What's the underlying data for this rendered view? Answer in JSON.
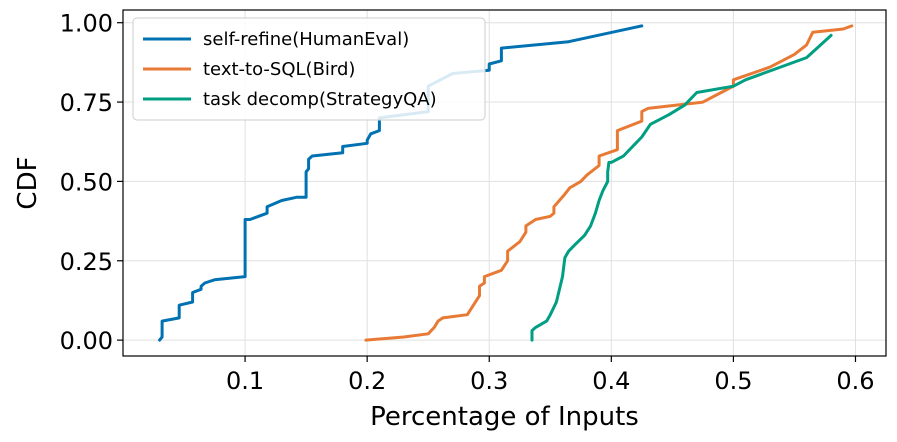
{
  "chart_data": {
    "type": "line",
    "title": "",
    "xlabel": "Percentage of Inputs",
    "ylabel": "CDF",
    "xlim": [
      0.0,
      0.625
    ],
    "ylim": [
      -0.05,
      1.04
    ],
    "xticks": [
      0.1,
      0.2,
      0.3,
      0.4,
      0.5,
      0.6
    ],
    "xtick_labels": [
      "0.1",
      "0.2",
      "0.3",
      "0.4",
      "0.5",
      "0.6"
    ],
    "yticks": [
      0.0,
      0.25,
      0.5,
      0.75,
      1.0
    ],
    "ytick_labels": [
      "0.00",
      "0.25",
      "0.50",
      "0.75",
      "1.00"
    ],
    "grid": true,
    "legend_position": "top-left",
    "series": [
      {
        "name": "self-refine(HumanEval)",
        "color": "#0072b2",
        "x": [
          0.03,
          0.032,
          0.032,
          0.046,
          0.046,
          0.057,
          0.057,
          0.064,
          0.064,
          0.067,
          0.067,
          0.075,
          0.1,
          0.1,
          0.104,
          0.118,
          0.118,
          0.13,
          0.142,
          0.15,
          0.15,
          0.152,
          0.152,
          0.155,
          0.18,
          0.18,
          0.2,
          0.2,
          0.2,
          0.203,
          0.21,
          0.21,
          0.25,
          0.25,
          0.27,
          0.3,
          0.3,
          0.31,
          0.31,
          0.365,
          0.425
        ],
        "y": [
          0.0,
          0.01,
          0.06,
          0.07,
          0.11,
          0.12,
          0.15,
          0.16,
          0.17,
          0.18,
          0.18,
          0.19,
          0.2,
          0.38,
          0.38,
          0.4,
          0.42,
          0.44,
          0.45,
          0.45,
          0.53,
          0.54,
          0.57,
          0.58,
          0.59,
          0.61,
          0.62,
          0.63,
          0.63,
          0.65,
          0.66,
          0.7,
          0.72,
          0.8,
          0.84,
          0.85,
          0.87,
          0.88,
          0.92,
          0.94,
          0.99
        ]
      },
      {
        "name": "text-to-SQL(Bird)",
        "color": "#e87a35",
        "x": [
          0.199,
          0.23,
          0.25,
          0.255,
          0.258,
          0.262,
          0.282,
          0.292,
          0.292,
          0.296,
          0.296,
          0.31,
          0.315,
          0.315,
          0.325,
          0.33,
          0.33,
          0.338,
          0.35,
          0.353,
          0.353,
          0.362,
          0.366,
          0.375,
          0.38,
          0.39,
          0.39,
          0.405,
          0.405,
          0.425,
          0.425,
          0.43,
          0.475,
          0.49,
          0.5,
          0.5,
          0.53,
          0.54,
          0.55,
          0.56,
          0.565,
          0.59,
          0.597
        ],
        "y": [
          0.0,
          0.01,
          0.02,
          0.04,
          0.06,
          0.07,
          0.08,
          0.14,
          0.17,
          0.18,
          0.2,
          0.22,
          0.25,
          0.28,
          0.31,
          0.34,
          0.36,
          0.38,
          0.39,
          0.4,
          0.42,
          0.46,
          0.48,
          0.5,
          0.52,
          0.55,
          0.58,
          0.6,
          0.66,
          0.69,
          0.72,
          0.73,
          0.75,
          0.78,
          0.8,
          0.82,
          0.86,
          0.88,
          0.9,
          0.93,
          0.97,
          0.98,
          0.99
        ]
      },
      {
        "name": "task decomp(StrategyQA)",
        "color": "#009e82",
        "x": [
          0.335,
          0.335,
          0.338,
          0.347,
          0.35,
          0.355,
          0.36,
          0.362,
          0.365,
          0.37,
          0.378,
          0.383,
          0.385,
          0.387,
          0.39,
          0.393,
          0.397,
          0.397,
          0.398,
          0.4,
          0.41,
          0.42,
          0.425,
          0.432,
          0.447,
          0.46,
          0.47,
          0.5,
          0.51,
          0.56,
          0.58
        ],
        "y": [
          0.0,
          0.03,
          0.04,
          0.06,
          0.08,
          0.12,
          0.2,
          0.26,
          0.28,
          0.3,
          0.33,
          0.36,
          0.38,
          0.4,
          0.44,
          0.47,
          0.5,
          0.53,
          0.56,
          0.56,
          0.58,
          0.62,
          0.64,
          0.68,
          0.71,
          0.74,
          0.78,
          0.8,
          0.82,
          0.89,
          0.96
        ]
      }
    ]
  }
}
